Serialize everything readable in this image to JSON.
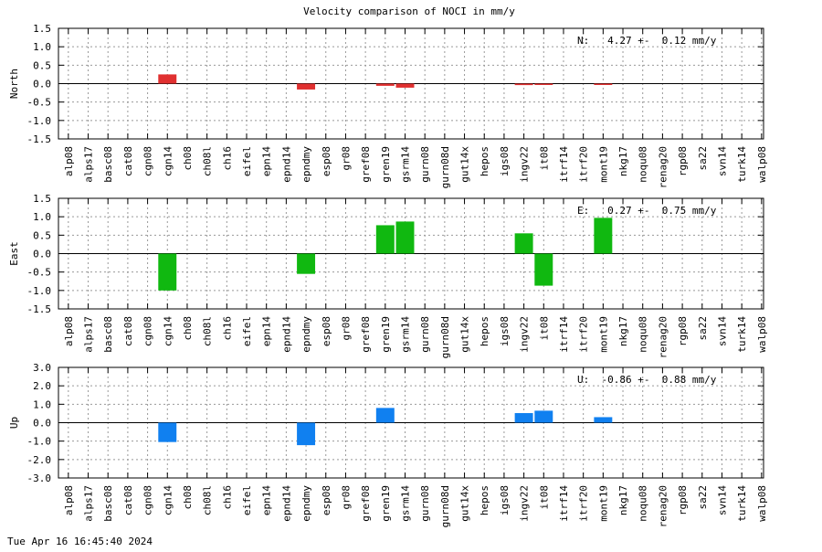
{
  "title": "Velocity comparison of NOCI in mm/y",
  "footer": {
    "timestamp": "Tue Apr 16 16:45:40 2024"
  },
  "chart_data": [
    {
      "type": "bar",
      "ylabel": "North",
      "annotation": "N:   4.27 +-  0.12 mm/y",
      "color": "#e03030",
      "ylim": [
        -1.5,
        1.5
      ],
      "yticks": [
        -1.5,
        -1.0,
        -0.5,
        0.0,
        0.5,
        1.0,
        1.5
      ],
      "ytick_labels": [
        "-1.5",
        "-1.0",
        "-0.5",
        "0.0",
        "0.5",
        "1.0",
        "1.5"
      ],
      "grid": true,
      "categories": [
        "alp08",
        "alps17",
        "basc08",
        "cat08",
        "cgn08",
        "cgn14",
        "ch08",
        "ch08l",
        "ch16",
        "eifel",
        "epn14",
        "epnd14",
        "epndmy",
        "esp08",
        "gr08",
        "gref08",
        "gren19",
        "gsrm14",
        "gurn08",
        "gurn08d",
        "gut14x",
        "hepos",
        "igs08",
        "ingv22",
        "it08",
        "itrf14",
        "itrf20",
        "mont19",
        "nkg17",
        "noqu08",
        "renag20",
        "rgp08",
        "sa22",
        "svn14",
        "turk14",
        "walp08"
      ],
      "values": [
        null,
        null,
        null,
        null,
        null,
        0.25,
        null,
        null,
        null,
        null,
        null,
        null,
        -0.16,
        null,
        null,
        null,
        -0.06,
        -0.11,
        null,
        null,
        null,
        null,
        null,
        -0.04,
        -0.03,
        null,
        null,
        -0.02,
        null,
        null,
        null,
        null,
        null,
        null,
        null,
        null
      ]
    },
    {
      "type": "bar",
      "ylabel": "East",
      "annotation": "E:   0.27 +-  0.75 mm/y",
      "color": "#10b810",
      "ylim": [
        -1.5,
        1.5
      ],
      "yticks": [
        -1.5,
        -1.0,
        -0.5,
        0.0,
        0.5,
        1.0,
        1.5
      ],
      "ytick_labels": [
        "-1.5",
        "-1.0",
        "-0.5",
        "0.0",
        "0.5",
        "1.0",
        "1.5"
      ],
      "grid": true,
      "categories": [
        "alp08",
        "alps17",
        "basc08",
        "cat08",
        "cgn08",
        "cgn14",
        "ch08",
        "ch08l",
        "ch16",
        "eifel",
        "epn14",
        "epnd14",
        "epndmy",
        "esp08",
        "gr08",
        "gref08",
        "gren19",
        "gsrm14",
        "gurn08",
        "gurn08d",
        "gut14x",
        "hepos",
        "igs08",
        "ingv22",
        "it08",
        "itrf14",
        "itrf20",
        "mont19",
        "nkg17",
        "noqu08",
        "renag20",
        "rgp08",
        "sa22",
        "svn14",
        "turk14",
        "walp08"
      ],
      "values": [
        null,
        null,
        null,
        null,
        null,
        -1.0,
        null,
        null,
        null,
        null,
        null,
        null,
        -0.55,
        null,
        null,
        null,
        0.77,
        0.87,
        null,
        null,
        null,
        null,
        null,
        0.55,
        -0.87,
        null,
        null,
        0.97,
        null,
        null,
        null,
        null,
        null,
        null,
        null,
        null
      ]
    },
    {
      "type": "bar",
      "ylabel": "Up",
      "annotation": "U:  -0.86 +-  0.88 mm/y",
      "color": "#1080f0",
      "ylim": [
        -3.0,
        3.0
      ],
      "yticks": [
        -3.0,
        -2.0,
        -1.0,
        0.0,
        1.0,
        2.0,
        3.0
      ],
      "ytick_labels": [
        "-3.0",
        "-2.0",
        "-1.0",
        "0.0",
        "1.0",
        "2.0",
        "3.0"
      ],
      "grid": true,
      "categories": [
        "alp08",
        "alps17",
        "basc08",
        "cat08",
        "cgn08",
        "cgn14",
        "ch08",
        "ch08l",
        "ch16",
        "eifel",
        "epn14",
        "epnd14",
        "epndmy",
        "esp08",
        "gr08",
        "gref08",
        "gren19",
        "gsrm14",
        "gurn08",
        "gurn08d",
        "gut14x",
        "hepos",
        "igs08",
        "ingv22",
        "it08",
        "itrf14",
        "itrf20",
        "mont19",
        "nkg17",
        "noqu08",
        "renag20",
        "rgp08",
        "sa22",
        "svn14",
        "turk14",
        "walp08"
      ],
      "values": [
        null,
        null,
        null,
        null,
        null,
        -1.05,
        null,
        null,
        null,
        null,
        null,
        null,
        -1.22,
        null,
        null,
        null,
        0.8,
        null,
        null,
        null,
        null,
        null,
        null,
        0.52,
        0.65,
        null,
        null,
        0.3,
        null,
        null,
        null,
        null,
        null,
        null,
        null,
        null
      ]
    }
  ]
}
